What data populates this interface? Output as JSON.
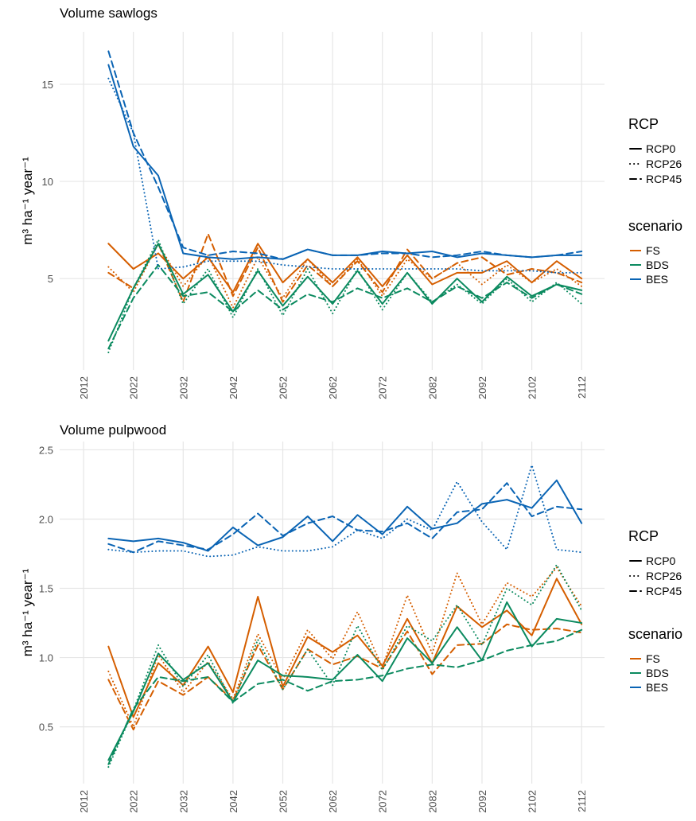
{
  "chart_data": [
    {
      "type": "line",
      "title": "Volume sawlogs",
      "y_label": "m³ ha⁻¹ year⁻¹",
      "x": [
        2017,
        2022,
        2027,
        2032,
        2037,
        2042,
        2047,
        2052,
        2057,
        2062,
        2067,
        2072,
        2077,
        2082,
        2087,
        2092,
        2097,
        2102,
        2107,
        2112
      ],
      "xlim": [
        2007.2,
        2116.6
      ],
      "xticks": [
        2012,
        2022,
        2032,
        2042,
        2052,
        2062,
        2072,
        2082,
        2092,
        2102,
        2112
      ],
      "ylim": [
        0.3,
        17.7
      ],
      "yticks": [
        5,
        10,
        15
      ],
      "grid": true,
      "rcp_legend_title": "RCP",
      "rcps": [
        {
          "name": "RCP0",
          "dash": "solid"
        },
        {
          "name": "RCP26",
          "dash": "dotted"
        },
        {
          "name": "RCP45",
          "dash": "dashed"
        }
      ],
      "scenario_legend_title": "scenario",
      "scenarios": [
        {
          "name": "FS",
          "color": "#d55e00",
          "values": [
            [
              6.8,
              5.5,
              6.3,
              5.0,
              6.1,
              4.3,
              6.8,
              4.8,
              6.0,
              4.8,
              6.1,
              4.6,
              6.2,
              4.7,
              5.3,
              5.3,
              5.9,
              4.8,
              5.9,
              5.0
            ],
            [
              5.6,
              4.3,
              6.8,
              4.6,
              6.2,
              3.5,
              6.1,
              4.0,
              6.0,
              4.6,
              6.0,
              4.1,
              6.0,
              5.0,
              5.8,
              4.7,
              5.7,
              4.8,
              5.5,
              4.6
            ],
            [
              5.3,
              4.5,
              6.8,
              3.8,
              7.3,
              4.1,
              6.6,
              3.8,
              5.7,
              4.6,
              5.9,
              4.3,
              6.5,
              5.0,
              5.8,
              6.1,
              5.2,
              5.5,
              5.3,
              4.8
            ]
          ]
        },
        {
          "name": "BDS",
          "color": "#0b8a5f",
          "values": [
            [
              1.8,
              4.5,
              6.8,
              4.2,
              5.2,
              3.3,
              5.4,
              3.6,
              5.1,
              3.7,
              5.4,
              3.7,
              5.3,
              3.7,
              5.0,
              3.8,
              5.1,
              4.1,
              4.7,
              4.4
            ],
            [
              1.2,
              4.5,
              7.0,
              3.7,
              5.5,
              3.0,
              5.5,
              3.1,
              5.5,
              3.2,
              5.5,
              3.4,
              5.3,
              3.8,
              4.7,
              3.7,
              5.0,
              3.8,
              4.8,
              3.7
            ],
            [
              1.4,
              4.0,
              5.7,
              4.1,
              4.3,
              3.3,
              4.4,
              3.4,
              4.2,
              3.8,
              4.5,
              4.0,
              4.5,
              3.8,
              4.6,
              4.0,
              4.8,
              4.0,
              4.7,
              4.2
            ]
          ]
        },
        {
          "name": "BES",
          "color": "#0a64b4",
          "values": [
            [
              16.0,
              11.8,
              10.3,
              6.3,
              6.1,
              6.0,
              6.1,
              6.0,
              6.5,
              6.2,
              6.2,
              6.4,
              6.3,
              6.4,
              6.1,
              6.3,
              6.2,
              6.1,
              6.2,
              6.2
            ],
            [
              15.3,
              12.5,
              5.5,
              5.6,
              5.9,
              5.9,
              5.9,
              5.7,
              5.6,
              5.5,
              5.5,
              5.5,
              5.5,
              5.5,
              5.5,
              5.4,
              5.4,
              5.4,
              5.3,
              5.3
            ],
            [
              16.7,
              12.5,
              9.7,
              6.6,
              6.2,
              6.4,
              6.3,
              6.0,
              6.5,
              6.2,
              6.2,
              6.3,
              6.3,
              6.1,
              6.2,
              6.4,
              6.2,
              6.1,
              6.2,
              6.4
            ]
          ]
        }
      ]
    },
    {
      "type": "line",
      "title": "Volume pulpwood",
      "y_label": "m³ ha⁻¹ year⁻¹",
      "x": [
        2017,
        2022,
        2027,
        2032,
        2037,
        2042,
        2047,
        2052,
        2057,
        2062,
        2067,
        2072,
        2077,
        2082,
        2087,
        2092,
        2097,
        2102,
        2107,
        2112
      ],
      "xlim": [
        2007.2,
        2116.6
      ],
      "xticks": [
        2012,
        2022,
        2032,
        2042,
        2052,
        2062,
        2072,
        2082,
        2092,
        2102,
        2112
      ],
      "ylim": [
        0.09,
        2.56
      ],
      "yticks": [
        0.5,
        {
          "value": 1,
          "label": "1.0"
        },
        1.5,
        {
          "value": 2,
          "label": "2.0"
        },
        2.5
      ],
      "grid": true,
      "rcp_legend_title": "RCP",
      "rcps": [
        {
          "name": "RCP0",
          "dash": "solid"
        },
        {
          "name": "RCP26",
          "dash": "dotted"
        },
        {
          "name": "RCP45",
          "dash": "dashed"
        }
      ],
      "scenario_legend_title": "scenario",
      "scenarios": [
        {
          "name": "FS",
          "color": "#d55e00",
          "values": [
            [
              1.08,
              0.57,
              0.96,
              0.8,
              1.08,
              0.75,
              1.44,
              0.79,
              1.15,
              1.04,
              1.16,
              0.94,
              1.28,
              0.96,
              1.37,
              1.22,
              1.34,
              1.16,
              1.57,
              1.24
            ],
            [
              0.9,
              0.5,
              1.02,
              0.75,
              0.97,
              0.7,
              1.17,
              0.84,
              1.2,
              0.99,
              1.33,
              0.93,
              1.45,
              1.03,
              1.61,
              1.24,
              1.54,
              1.44,
              1.65,
              1.37
            ],
            [
              0.84,
              0.48,
              0.83,
              0.73,
              0.86,
              0.69,
              1.09,
              0.77,
              1.06,
              0.95,
              1.01,
              0.92,
              1.19,
              0.88,
              1.09,
              1.1,
              1.24,
              1.2,
              1.21,
              1.18
            ]
          ]
        },
        {
          "name": "BDS",
          "color": "#0b8a5f",
          "values": [
            [
              0.26,
              0.61,
              1.03,
              0.84,
              0.96,
              0.68,
              0.98,
              0.87,
              0.86,
              0.84,
              1.02,
              0.83,
              1.14,
              0.96,
              1.22,
              0.98,
              1.4,
              1.08,
              1.28,
              1.25
            ],
            [
              0.21,
              0.62,
              1.09,
              0.79,
              1.02,
              0.67,
              1.13,
              0.77,
              1.06,
              0.8,
              1.23,
              0.91,
              1.23,
              1.12,
              1.38,
              1.09,
              1.5,
              1.38,
              1.67,
              1.34
            ],
            [
              0.23,
              0.63,
              0.86,
              0.83,
              0.86,
              0.68,
              0.81,
              0.84,
              0.76,
              0.83,
              0.84,
              0.87,
              0.92,
              0.95,
              0.93,
              0.98,
              1.05,
              1.09,
              1.12,
              1.2
            ]
          ]
        },
        {
          "name": "BES",
          "color": "#0a64b4",
          "values": [
            [
              1.86,
              1.84,
              1.86,
              1.83,
              1.77,
              1.94,
              1.81,
              1.87,
              2.02,
              1.84,
              2.03,
              1.89,
              2.09,
              1.93,
              1.97,
              2.11,
              2.14,
              2.08,
              2.28,
              1.97
            ],
            [
              1.78,
              1.76,
              1.77,
              1.77,
              1.73,
              1.74,
              1.8,
              1.77,
              1.77,
              1.8,
              1.92,
              1.86,
              2.0,
              1.92,
              2.27,
              1.98,
              1.78,
              2.39,
              1.78,
              1.76
            ],
            [
              1.82,
              1.76,
              1.84,
              1.81,
              1.78,
              1.89,
              2.04,
              1.88,
              1.97,
              2.02,
              1.92,
              1.91,
              1.97,
              1.86,
              2.05,
              2.07,
              2.26,
              2.02,
              2.09,
              2.07
            ]
          ]
        }
      ]
    }
  ]
}
